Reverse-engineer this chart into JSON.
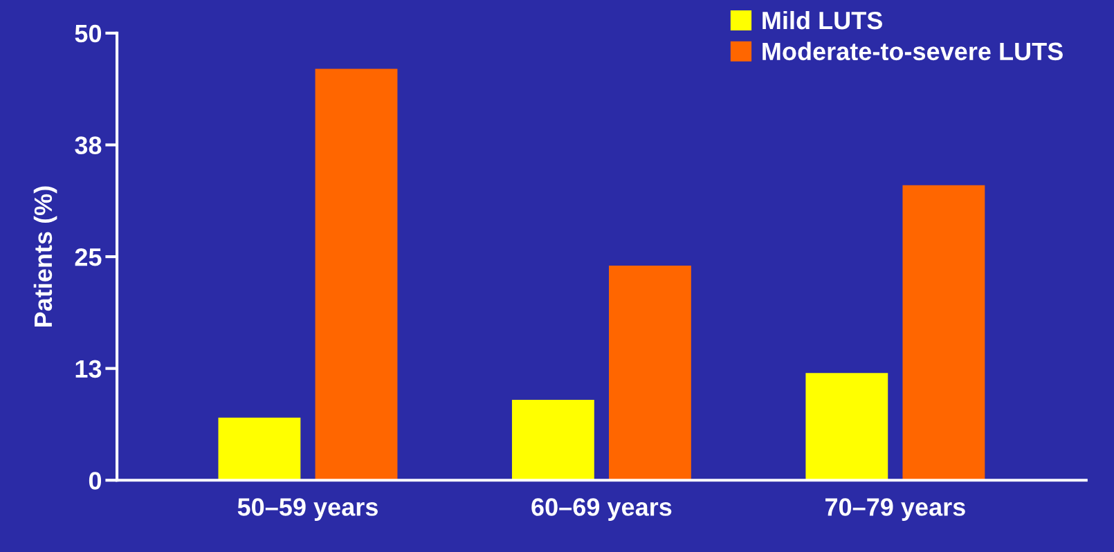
{
  "chart_data": {
    "type": "bar",
    "ylabel": "Patients (%)",
    "categories": [
      "50–59 years",
      "60–69 years",
      "70–79 years"
    ],
    "series": [
      {
        "name": "Mild LUTS",
        "color": "#ffff00",
        "values": [
          7,
          9,
          12
        ]
      },
      {
        "name": "Moderate-to-severe LUTS",
        "color": "#ff6600",
        "values": [
          46,
          24,
          33
        ]
      }
    ],
    "ylim": [
      0,
      50
    ],
    "yticks": [
      0,
      {
        "value": 12.5,
        "label": "13"
      },
      25,
      {
        "value": 37.5,
        "label": "38"
      },
      50
    ],
    "grid": false,
    "legend": "top right"
  }
}
